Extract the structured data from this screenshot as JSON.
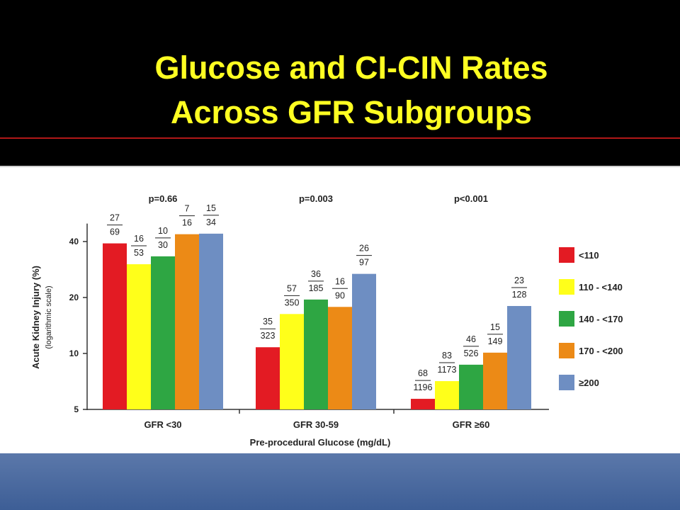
{
  "slide": {
    "title_line1": "Glucose and CI-CIN Rates",
    "title_line2": "Across GFR Subgroups"
  },
  "colors": {
    "header_bg": "#000000",
    "title_text": "#ffff22",
    "footer_bg": "#4a69a0"
  },
  "chart_data": {
    "type": "bar",
    "title": "",
    "xlabel": "Pre-procedural Glucose (mg/dL)",
    "ylabel": "Acute Kidney Injury (%)",
    "ylabel_sub": "(logarithmic scale)",
    "yscale": "log",
    "ylim": [
      5,
      50
    ],
    "yticks": [
      5,
      10,
      20,
      40
    ],
    "grid": false,
    "legend_position": "right",
    "categories": [
      "GFR <30",
      "GFR 30-59",
      "GFR ≥60"
    ],
    "pvalues": [
      "p=0.66",
      "p=0.003",
      "p<0.001"
    ],
    "series": [
      {
        "name": "<110",
        "color": "#e31b23",
        "values": [
          39.1,
          10.8,
          5.7
        ],
        "numerators": [
          "27",
          "35",
          "68"
        ],
        "denominators": [
          "69",
          "323",
          "1196"
        ]
      },
      {
        "name": "110 - <140",
        "color": "#ffff1a",
        "values": [
          30.2,
          16.3,
          7.1
        ],
        "numerators": [
          "16",
          "57",
          "83"
        ],
        "denominators": [
          "53",
          "350",
          "1173"
        ]
      },
      {
        "name": "140 - <170",
        "color": "#2ea643",
        "values": [
          33.3,
          19.5,
          8.7
        ],
        "numerators": [
          "10",
          "36",
          "46"
        ],
        "denominators": [
          "30",
          "185",
          "526"
        ]
      },
      {
        "name": "170 - <200",
        "color": "#ec8a16",
        "values": [
          43.8,
          17.8,
          10.1
        ],
        "numerators": [
          "7",
          "16",
          "15"
        ],
        "denominators": [
          "16",
          "90",
          "149"
        ]
      },
      {
        "name": "≥200",
        "color": "#6e8ec2",
        "values": [
          44.1,
          26.8,
          18.0
        ],
        "numerators": [
          "15",
          "26",
          "23"
        ],
        "denominators": [
          "34",
          "97",
          "128"
        ]
      }
    ]
  }
}
